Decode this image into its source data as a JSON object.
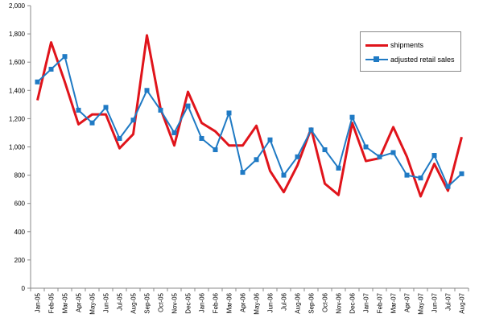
{
  "chart_data": {
    "type": "line",
    "title": "",
    "xlabel": "",
    "ylabel": "",
    "ylim": [
      0,
      2000
    ],
    "yticks": [
      "0",
      "200",
      "400",
      "600",
      "800",
      "1,000",
      "1,200",
      "1,400",
      "1,600",
      "1,800",
      "2,000"
    ],
    "ytick_values": [
      0,
      200,
      400,
      600,
      800,
      1000,
      1200,
      1400,
      1600,
      1800,
      2000
    ],
    "grid": false,
    "legend_position": "top-right",
    "categories": [
      "Jan-05",
      "Feb-05",
      "Mar-05",
      "Apr-05",
      "May-05",
      "Jun-05",
      "Jul-05",
      "Aug-05",
      "Sep-05",
      "Oct-05",
      "Nov-05",
      "Dec-05",
      "Jan-06",
      "Feb-06",
      "Mar-06",
      "Apr-06",
      "May-06",
      "Jun-06",
      "Jul-06",
      "Aug-06",
      "Sep-06",
      "Oct-06",
      "Nov-06",
      "Dec-06",
      "Jan-07",
      "Feb-07",
      "Mar-07",
      "Apr-07",
      "May-07",
      "Jun-07",
      "Jul-07",
      "Aug-07"
    ],
    "series": [
      {
        "name": "shipments",
        "color": "#e0141b",
        "marker": "none",
        "values": [
          1330,
          1740,
          1460,
          1160,
          1230,
          1230,
          990,
          1090,
          1790,
          1270,
          1010,
          1390,
          1170,
          1110,
          1010,
          1010,
          1150,
          830,
          680,
          870,
          1130,
          740,
          660,
          1170,
          900,
          920,
          1140,
          930,
          650,
          880,
          690,
          1070
        ]
      },
      {
        "name": "adjusted retail sales",
        "color": "#1f7ac4",
        "marker": "square",
        "values": [
          1460,
          1550,
          1640,
          1260,
          1170,
          1280,
          1060,
          1190,
          1400,
          1260,
          1100,
          1290,
          1060,
          980,
          1240,
          820,
          910,
          1050,
          800,
          930,
          1120,
          980,
          850,
          1210,
          1000,
          930,
          960,
          800,
          780,
          940,
          720,
          810
        ]
      }
    ]
  }
}
